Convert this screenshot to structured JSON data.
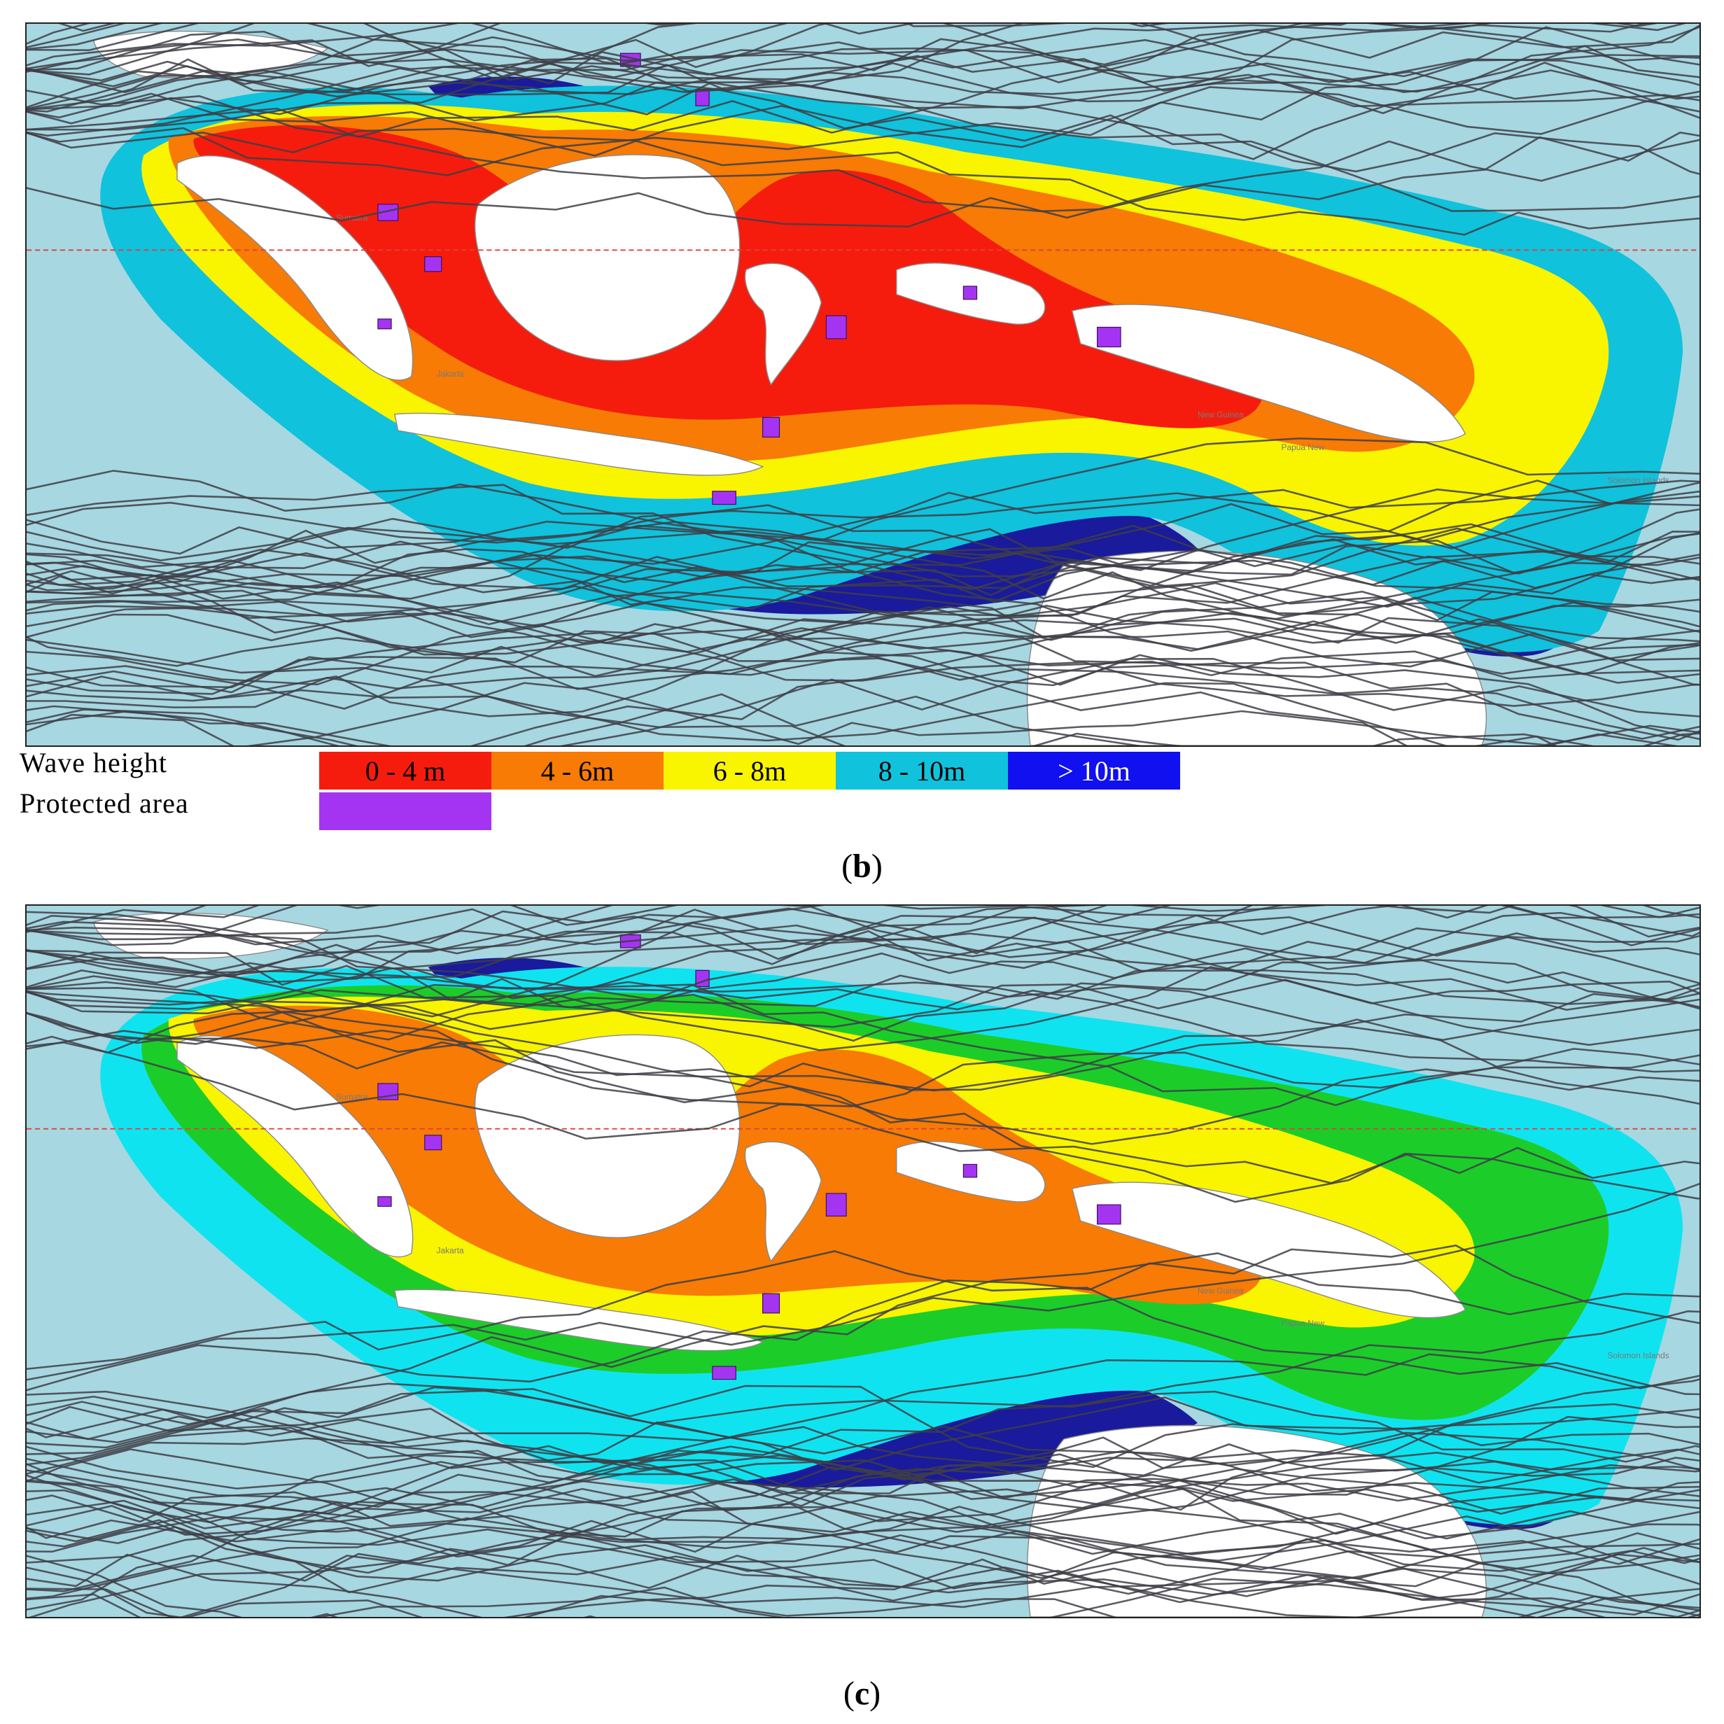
{
  "legend": {
    "wave_height_label": "Wave height",
    "protected_area_label": "Protected area",
    "classes": [
      {
        "label": "0 - 4 m",
        "color": "#f51c0e"
      },
      {
        "label": "4 - 6m",
        "color": "#f77b05"
      },
      {
        "label": "6 - 8m",
        "color": "#f9f400"
      },
      {
        "label": "8 - 10m",
        "color": "#10c2dc"
      },
      {
        "label": "> 10m",
        "color": "#1010f0"
      }
    ],
    "protected_area_color": "#a534f2"
  },
  "panels": [
    {
      "id": "b",
      "caption_letter": "b",
      "scheme": [
        "#f51c0e",
        "#f77b05",
        "#f9f400",
        "#10c2dc",
        "#1a1a9c"
      ]
    },
    {
      "id": "c",
      "caption_letter": "c",
      "scheme": [
        "#f77b05",
        "#f9f400",
        "#1ccd2a",
        "#10e3f0",
        "#1a1a9c"
      ]
    }
  ],
  "map": {
    "ocean_color": "#a7d7e1",
    "land_color": "#ffffff",
    "track_color": "#3e3e46",
    "equator_color": "#e0403a",
    "place_labels": [
      "Sumatra",
      "Jakarta",
      "New Guinea",
      "Papua New",
      "Solomon Islands"
    ]
  }
}
